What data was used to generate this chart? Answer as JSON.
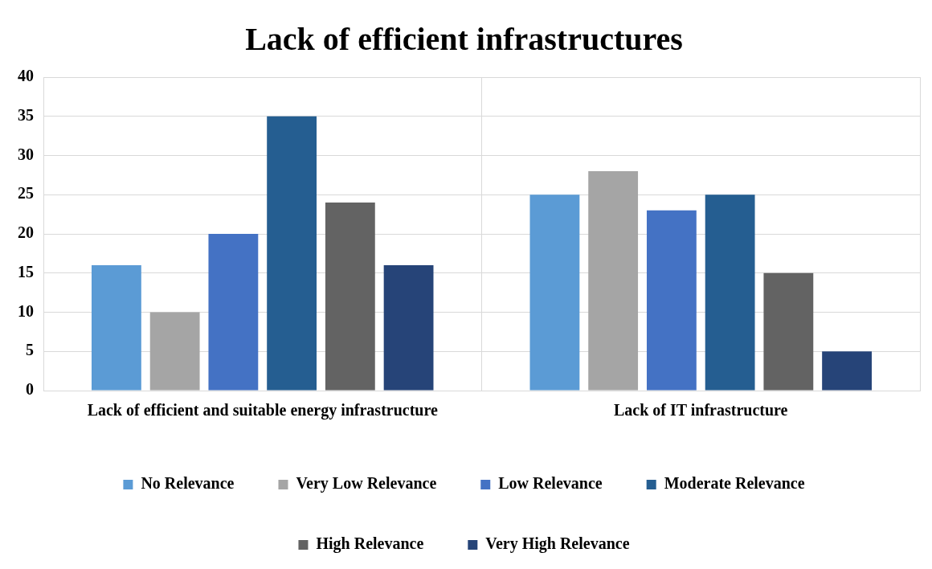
{
  "chart_data": {
    "type": "bar",
    "title": "Lack of efficient infrastructures",
    "categories": [
      "Lack of efficient and suitable energy infrastructure",
      "Lack of IT infrastructure"
    ],
    "series": [
      {
        "name": "No Relevance",
        "color": "#5b9bd5",
        "values": [
          16,
          25
        ]
      },
      {
        "name": "Very Low Relevance",
        "color": "#a5a5a5",
        "values": [
          10,
          28
        ]
      },
      {
        "name": "Low Relevance",
        "color": "#4472c4",
        "values": [
          20,
          23
        ]
      },
      {
        "name": "Moderate Relevance",
        "color": "#255e91",
        "values": [
          35,
          25
        ]
      },
      {
        "name": "High Relevance",
        "color": "#636363",
        "values": [
          24,
          15
        ]
      },
      {
        "name": "Very High Relevance",
        "color": "#264478",
        "values": [
          16,
          5
        ]
      }
    ],
    "ylim": [
      0,
      40
    ],
    "yticks": [
      0,
      5,
      10,
      15,
      20,
      25,
      30,
      35,
      40
    ],
    "grid": true,
    "legend": "bottom"
  }
}
